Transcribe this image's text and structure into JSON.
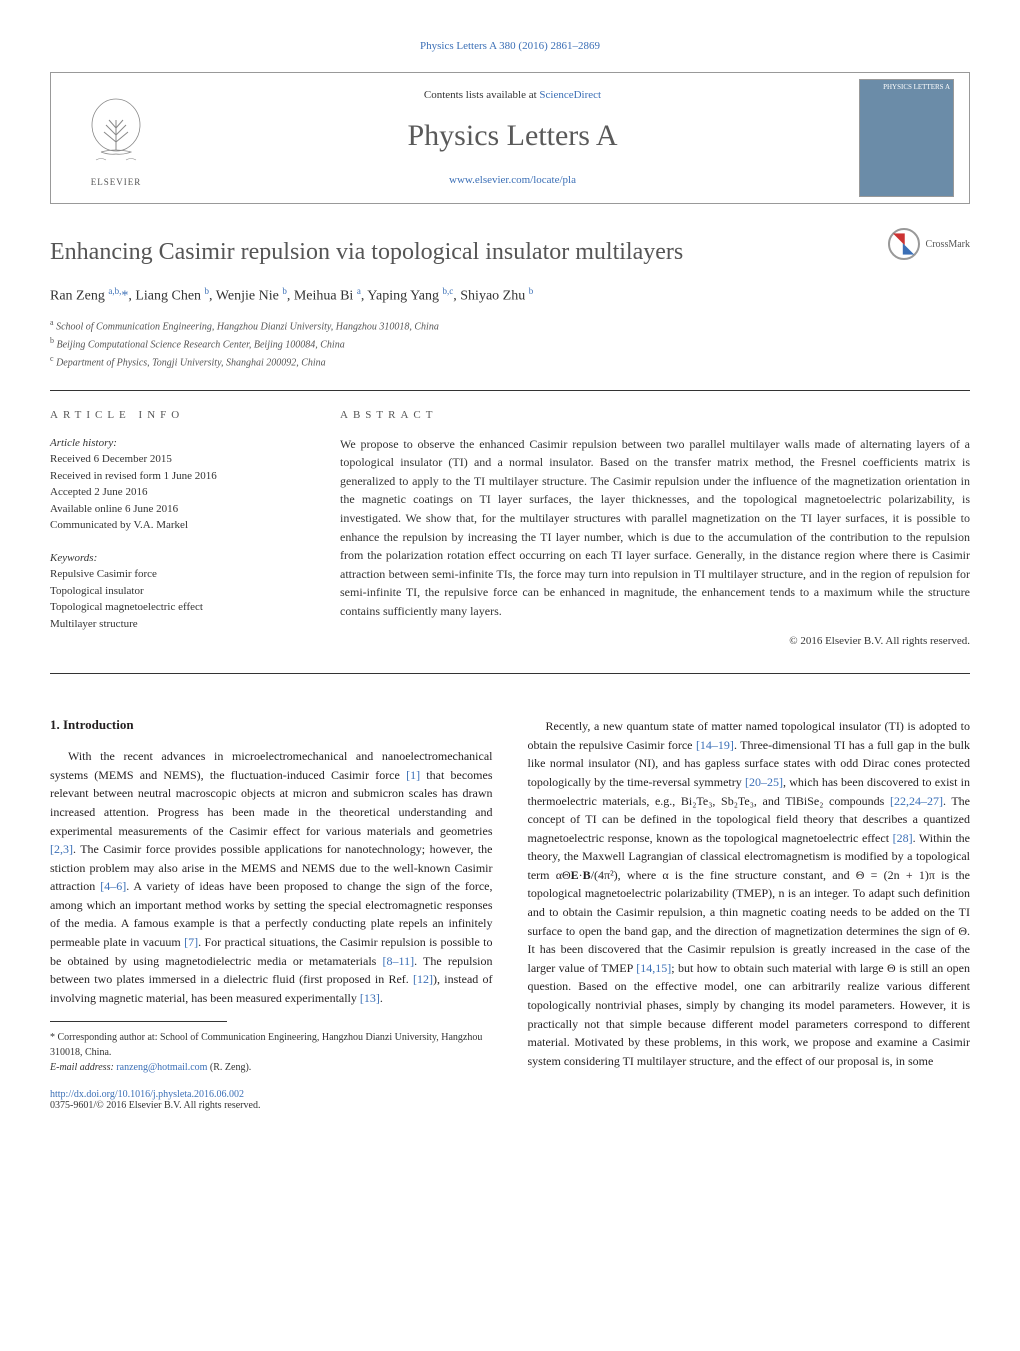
{
  "top_citation": "Physics Letters A 380 (2016) 2861–2869",
  "header": {
    "contents_prefix": "Contents lists available at ",
    "contents_link": "ScienceDirect",
    "journal_name": "Physics Letters A",
    "journal_url": "www.elsevier.com/locate/pla",
    "publisher_label": "ELSEVIER",
    "cover_label": "PHYSICS LETTERS A"
  },
  "crossmark_label": "CrossMark",
  "article": {
    "title": "Enhancing Casimir repulsion via topological insulator multilayers",
    "authors_html": "Ran Zeng <sup>a,b,</sup><span class='star'>*</span>, Liang Chen <sup>b</sup>, Wenjie Nie <sup>b</sup>, Meihua Bi <sup>a</sup>, Yaping Yang <sup>b,c</sup>, Shiyao Zhu <sup>b</sup>",
    "affiliations": [
      "a School of Communication Engineering, Hangzhou Dianzi University, Hangzhou 310018, China",
      "b Beijing Computational Science Research Center, Beijing 100084, China",
      "c Department of Physics, Tongji University, Shanghai 200092, China"
    ]
  },
  "info": {
    "label": "ARTICLE INFO",
    "history_label": "Article history:",
    "history": [
      "Received 6 December 2015",
      "Received in revised form 1 June 2016",
      "Accepted 2 June 2016",
      "Available online 6 June 2016",
      "Communicated by V.A. Markel"
    ],
    "keywords_label": "Keywords:",
    "keywords": [
      "Repulsive Casimir force",
      "Topological insulator",
      "Topological magnetoelectric effect",
      "Multilayer structure"
    ]
  },
  "abstract": {
    "label": "ABSTRACT",
    "text": "We propose to observe the enhanced Casimir repulsion between two parallel multilayer walls made of alternating layers of a topological insulator (TI) and a normal insulator. Based on the transfer matrix method, the Fresnel coefficients matrix is generalized to apply to the TI multilayer structure. The Casimir repulsion under the influence of the magnetization orientation in the magnetic coatings on TI layer surfaces, the layer thicknesses, and the topological magnetoelectric polarizability, is investigated. We show that, for the multilayer structures with parallel magnetization on the TI layer surfaces, it is possible to enhance the repulsion by increasing the TI layer number, which is due to the accumulation of the contribution to the repulsion from the polarization rotation effect occurring on each TI layer surface. Generally, in the distance region where there is Casimir attraction between semi-infinite TIs, the force may turn into repulsion in TI multilayer structure, and in the region of repulsion for semi-infinite TI, the repulsive force can be enhanced in magnitude, the enhancement tends to a maximum while the structure contains sufficiently many layers.",
    "copyright": "© 2016 Elsevier B.V. All rights reserved."
  },
  "body": {
    "section_heading": "1. Introduction",
    "col1_html": "With the recent advances in microelectromechanical and nanoelectromechanical systems (MEMS and NEMS), the fluctuation-induced Casimir force <span class='citation'>[1]</span> that becomes relevant between neutral macroscopic objects at micron and submicron scales has drawn increased attention. Progress has been made in the theoretical understanding and experimental measurements of the Casimir effect for various materials and geometries <span class='citation'>[2,3]</span>. The Casimir force provides possible applications for nanotechnology; however, the stiction problem may also arise in the MEMS and NEMS due to the well-known Casimir attraction <span class='citation'>[4–6]</span>. A variety of ideas have been proposed to change the sign of the force, among which an important method works by setting the special electromagnetic responses of the media. A famous example is that a perfectly conducting plate repels an infinitely permeable plate in vacuum <span class='citation'>[7]</span>. For practical situations, the Casimir repulsion is possible to be obtained by using magnetodielectric media or metamaterials <span class='citation'>[8–11]</span>. The repulsion between two plates immersed in a dielectric fluid (first proposed in Ref. <span class='citation'>[12]</span>), instead of involving magnetic material, has been measured experimentally <span class='citation'>[13]</span>.",
    "col2_html": "Recently, a new quantum state of matter named topological insulator (TI) is adopted to obtain the repulsive Casimir force <span class='citation'>[14–19]</span>. Three-dimensional TI has a full gap in the bulk like normal insulator (NI), and has gapless surface states with odd Dirac cones protected topologically by the time-reversal symmetry <span class='citation'>[20–25]</span>, which has been discovered to exist in thermoelectric materials, e.g., Bi₂Te₃, Sb₂Te₃, and TlBiSe₂ compounds <span class='citation'>[22,24–27]</span>. The concept of TI can be defined in the topological field theory that describes a quantized magnetoelectric response, known as the topological magnetoelectric effect <span class='citation'>[28]</span>. Within the theory, the Maxwell Lagrangian of classical electromagnetism is modified by a topological term αΘ<b>E</b>·<b>B</b>/(4π²), where α is the fine structure constant, and Θ = (2n + 1)π is the topological magnetoelectric polarizability (TMEP), n is an integer. To adapt such definition and to obtain the Casimir repulsion, a thin magnetic coating needs to be added on the TI surface to open the band gap, and the direction of magnetization determines the sign of Θ. It has been discovered that the Casimir repulsion is greatly increased in the case of the larger value of TMEP <span class='citation'>[14,15]</span>; but how to obtain such material with large Θ is still an open question. Based on the effective model, one can arbitrarily realize various different topologically nontrivial phases, simply by changing its model parameters. However, it is practically not that simple because different model parameters correspond to different material. Motivated by these problems, in this work, we propose and examine a Casimir system considering TI multilayer structure, and the effect of our proposal is, in some"
  },
  "footnote": {
    "corresponding": "* Corresponding author at: School of Communication Engineering, Hangzhou Dianzi University, Hangzhou 310018, China.",
    "email_label": "E-mail address:",
    "email": "ranzeng@hotmail.com",
    "email_suffix": "(R. Zeng)."
  },
  "footer": {
    "doi": "http://dx.doi.org/10.1016/j.physleta.2016.06.002",
    "issn": "0375-9601/© 2016 Elsevier B.V. All rights reserved."
  },
  "colors": {
    "link": "#3b6fb6",
    "text": "#231f20",
    "muted": "#555555",
    "border": "#999999",
    "cover_bg": "#6b8ca8"
  }
}
